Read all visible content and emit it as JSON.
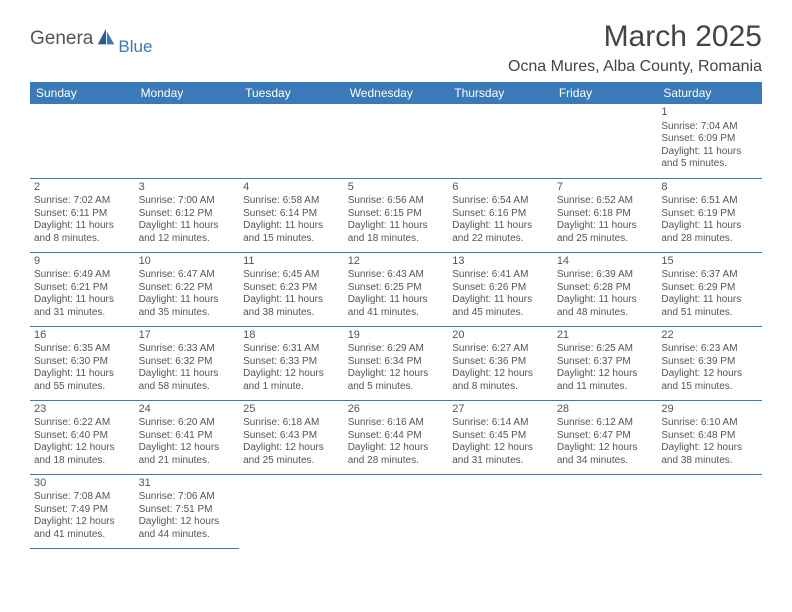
{
  "brand": {
    "main": "Genera",
    "sub": "Blue"
  },
  "title": "March 2025",
  "location": "Ocna Mures, Alba County, Romania",
  "colors": {
    "header_bg": "#3a7ab8",
    "header_text": "#ffffff",
    "border": "#3a7ab8",
    "text": "#444444"
  },
  "day_headers": [
    "Sunday",
    "Monday",
    "Tuesday",
    "Wednesday",
    "Thursday",
    "Friday",
    "Saturday"
  ],
  "weeks": [
    [
      null,
      null,
      null,
      null,
      null,
      null,
      {
        "n": "1",
        "sr": "Sunrise: 7:04 AM",
        "ss": "Sunset: 6:09 PM",
        "dl": "Daylight: 11 hours and 5 minutes."
      }
    ],
    [
      {
        "n": "2",
        "sr": "Sunrise: 7:02 AM",
        "ss": "Sunset: 6:11 PM",
        "dl": "Daylight: 11 hours and 8 minutes."
      },
      {
        "n": "3",
        "sr": "Sunrise: 7:00 AM",
        "ss": "Sunset: 6:12 PM",
        "dl": "Daylight: 11 hours and 12 minutes."
      },
      {
        "n": "4",
        "sr": "Sunrise: 6:58 AM",
        "ss": "Sunset: 6:14 PM",
        "dl": "Daylight: 11 hours and 15 minutes."
      },
      {
        "n": "5",
        "sr": "Sunrise: 6:56 AM",
        "ss": "Sunset: 6:15 PM",
        "dl": "Daylight: 11 hours and 18 minutes."
      },
      {
        "n": "6",
        "sr": "Sunrise: 6:54 AM",
        "ss": "Sunset: 6:16 PM",
        "dl": "Daylight: 11 hours and 22 minutes."
      },
      {
        "n": "7",
        "sr": "Sunrise: 6:52 AM",
        "ss": "Sunset: 6:18 PM",
        "dl": "Daylight: 11 hours and 25 minutes."
      },
      {
        "n": "8",
        "sr": "Sunrise: 6:51 AM",
        "ss": "Sunset: 6:19 PM",
        "dl": "Daylight: 11 hours and 28 minutes."
      }
    ],
    [
      {
        "n": "9",
        "sr": "Sunrise: 6:49 AM",
        "ss": "Sunset: 6:21 PM",
        "dl": "Daylight: 11 hours and 31 minutes."
      },
      {
        "n": "10",
        "sr": "Sunrise: 6:47 AM",
        "ss": "Sunset: 6:22 PM",
        "dl": "Daylight: 11 hours and 35 minutes."
      },
      {
        "n": "11",
        "sr": "Sunrise: 6:45 AM",
        "ss": "Sunset: 6:23 PM",
        "dl": "Daylight: 11 hours and 38 minutes."
      },
      {
        "n": "12",
        "sr": "Sunrise: 6:43 AM",
        "ss": "Sunset: 6:25 PM",
        "dl": "Daylight: 11 hours and 41 minutes."
      },
      {
        "n": "13",
        "sr": "Sunrise: 6:41 AM",
        "ss": "Sunset: 6:26 PM",
        "dl": "Daylight: 11 hours and 45 minutes."
      },
      {
        "n": "14",
        "sr": "Sunrise: 6:39 AM",
        "ss": "Sunset: 6:28 PM",
        "dl": "Daylight: 11 hours and 48 minutes."
      },
      {
        "n": "15",
        "sr": "Sunrise: 6:37 AM",
        "ss": "Sunset: 6:29 PM",
        "dl": "Daylight: 11 hours and 51 minutes."
      }
    ],
    [
      {
        "n": "16",
        "sr": "Sunrise: 6:35 AM",
        "ss": "Sunset: 6:30 PM",
        "dl": "Daylight: 11 hours and 55 minutes."
      },
      {
        "n": "17",
        "sr": "Sunrise: 6:33 AM",
        "ss": "Sunset: 6:32 PM",
        "dl": "Daylight: 11 hours and 58 minutes."
      },
      {
        "n": "18",
        "sr": "Sunrise: 6:31 AM",
        "ss": "Sunset: 6:33 PM",
        "dl": "Daylight: 12 hours and 1 minute."
      },
      {
        "n": "19",
        "sr": "Sunrise: 6:29 AM",
        "ss": "Sunset: 6:34 PM",
        "dl": "Daylight: 12 hours and 5 minutes."
      },
      {
        "n": "20",
        "sr": "Sunrise: 6:27 AM",
        "ss": "Sunset: 6:36 PM",
        "dl": "Daylight: 12 hours and 8 minutes."
      },
      {
        "n": "21",
        "sr": "Sunrise: 6:25 AM",
        "ss": "Sunset: 6:37 PM",
        "dl": "Daylight: 12 hours and 11 minutes."
      },
      {
        "n": "22",
        "sr": "Sunrise: 6:23 AM",
        "ss": "Sunset: 6:39 PM",
        "dl": "Daylight: 12 hours and 15 minutes."
      }
    ],
    [
      {
        "n": "23",
        "sr": "Sunrise: 6:22 AM",
        "ss": "Sunset: 6:40 PM",
        "dl": "Daylight: 12 hours and 18 minutes."
      },
      {
        "n": "24",
        "sr": "Sunrise: 6:20 AM",
        "ss": "Sunset: 6:41 PM",
        "dl": "Daylight: 12 hours and 21 minutes."
      },
      {
        "n": "25",
        "sr": "Sunrise: 6:18 AM",
        "ss": "Sunset: 6:43 PM",
        "dl": "Daylight: 12 hours and 25 minutes."
      },
      {
        "n": "26",
        "sr": "Sunrise: 6:16 AM",
        "ss": "Sunset: 6:44 PM",
        "dl": "Daylight: 12 hours and 28 minutes."
      },
      {
        "n": "27",
        "sr": "Sunrise: 6:14 AM",
        "ss": "Sunset: 6:45 PM",
        "dl": "Daylight: 12 hours and 31 minutes."
      },
      {
        "n": "28",
        "sr": "Sunrise: 6:12 AM",
        "ss": "Sunset: 6:47 PM",
        "dl": "Daylight: 12 hours and 34 minutes."
      },
      {
        "n": "29",
        "sr": "Sunrise: 6:10 AM",
        "ss": "Sunset: 6:48 PM",
        "dl": "Daylight: 12 hours and 38 minutes."
      }
    ],
    [
      {
        "n": "30",
        "sr": "Sunrise: 7:08 AM",
        "ss": "Sunset: 7:49 PM",
        "dl": "Daylight: 12 hours and 41 minutes."
      },
      {
        "n": "31",
        "sr": "Sunrise: 7:06 AM",
        "ss": "Sunset: 7:51 PM",
        "dl": "Daylight: 12 hours and 44 minutes."
      },
      null,
      null,
      null,
      null,
      null
    ]
  ]
}
